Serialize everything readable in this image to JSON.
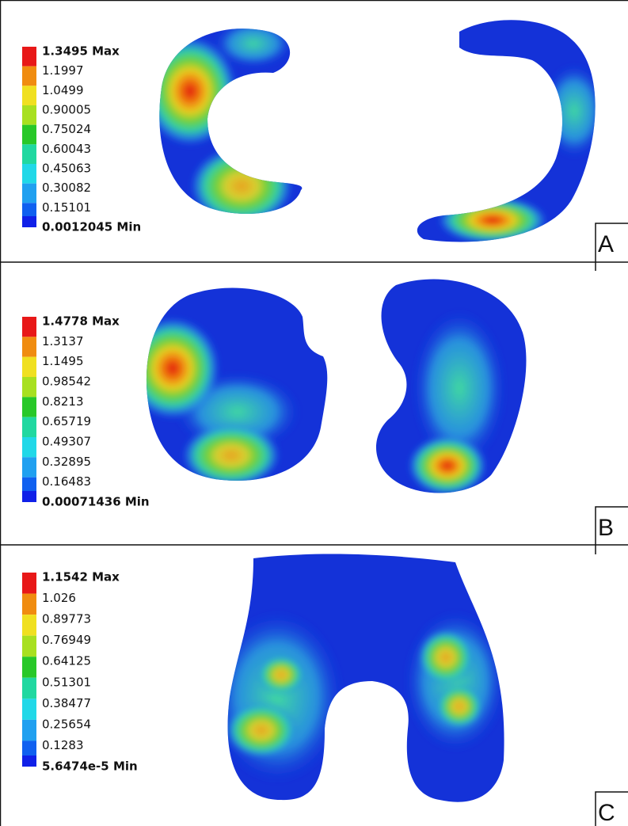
{
  "panels": [
    {
      "label": "A",
      "legend": [
        "1.3495 Max",
        "1.1997",
        "1.0499",
        "0.90005",
        "0.75024",
        "0.60043",
        "0.45063",
        "0.30082",
        "0.15101",
        "0.0012045 Min"
      ]
    },
    {
      "label": "B",
      "legend": [
        "1.4778 Max",
        "1.3137",
        "1.1495",
        "0.98542",
        "0.8213",
        "0.65719",
        "0.49307",
        "0.32895",
        "0.16483",
        "0.00071436 Min"
      ]
    },
    {
      "label": "C",
      "legend": [
        "1.1542 Max",
        "1.026",
        "0.89773",
        "0.76949",
        "0.64125",
        "0.51301",
        "0.38477",
        "0.25654",
        "0.1283",
        "5.6474e-5 Min"
      ]
    }
  ]
}
